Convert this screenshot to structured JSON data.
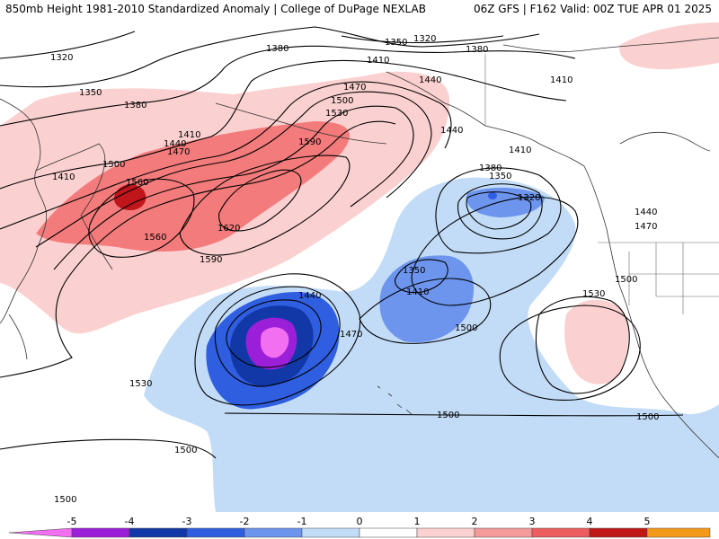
{
  "header": {
    "title": "850mb Height 1981-2010 Standardized Anomaly | College of DuPage NEXLAB",
    "run_info": "06Z GFS | F162 Valid: 00Z TUE APR 01 2025"
  },
  "contour_labels": [
    "1320",
    "1350",
    "1380",
    "1410",
    "1440",
    "1470",
    "1500",
    "1530",
    "1560",
    "1590",
    "1620"
  ],
  "colorbar": {
    "ticks": [
      "-5",
      "-4",
      "-3",
      "-2",
      "-1",
      "0",
      "1",
      "2",
      "3",
      "4",
      "5"
    ],
    "colors": [
      "#f26ff2",
      "#9b1fd9",
      "#1238a8",
      "#2f5ee0",
      "#6d95ee",
      "#c2dcf7",
      "#ffffff",
      "#fbd0d0",
      "#f49a9a",
      "#ec5d5d",
      "#c01818",
      "#f49a1a",
      "#f7c21a"
    ]
  }
}
